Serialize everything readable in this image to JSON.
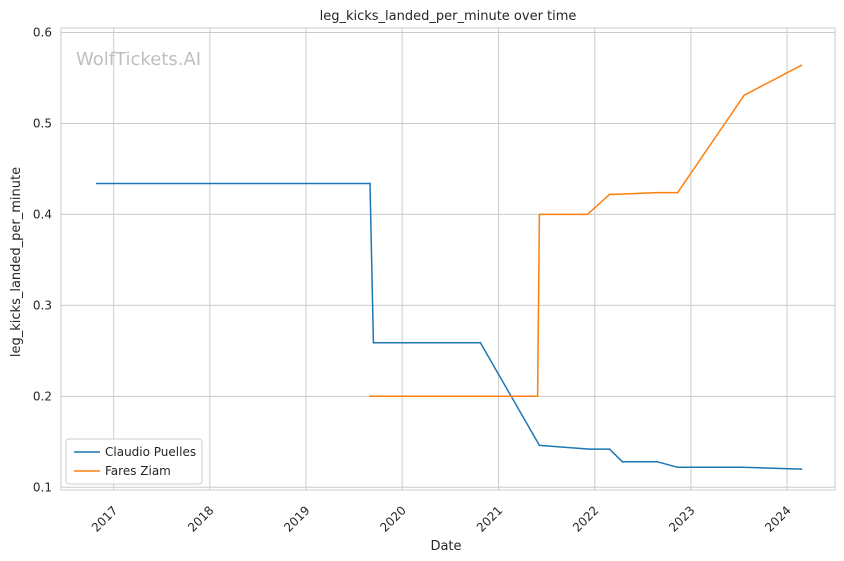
{
  "chart_data": {
    "type": "line",
    "title": "leg_kicks_landed_per_minute over time",
    "xlabel": "Date",
    "ylabel": "leg_kicks_landed_per_minute",
    "watermark": "WolfTickets.AI",
    "xlim": [
      "2016-06-15",
      "2024-07-01"
    ],
    "ylim": [
      0.097,
      0.605
    ],
    "x_ticks": [
      "2017",
      "2018",
      "2019",
      "2020",
      "2021",
      "2022",
      "2023",
      "2024"
    ],
    "y_ticks": [
      "0.1",
      "0.2",
      "0.3",
      "0.4",
      "0.5",
      "0.6"
    ],
    "grid": true,
    "legend_position": "lower-left",
    "series": [
      {
        "name": "Claudio Puelles",
        "color": "#1f77b4",
        "points": [
          [
            "2016-10-29",
            0.434
          ],
          [
            "2019-09-01",
            0.434
          ],
          [
            "2019-09-14",
            0.259
          ],
          [
            "2020-10-24",
            0.259
          ],
          [
            "2021-06-05",
            0.146
          ],
          [
            "2021-12-11",
            0.142
          ],
          [
            "2022-02-26",
            0.142
          ],
          [
            "2022-04-16",
            0.128
          ],
          [
            "2022-08-27",
            0.128
          ],
          [
            "2022-11-12",
            0.122
          ],
          [
            "2023-07-15",
            0.122
          ],
          [
            "2024-02-24",
            0.12
          ]
        ]
      },
      {
        "name": "Fares Ziam",
        "color": "#ff7f0e",
        "points": [
          [
            "2019-09-01",
            0.2
          ],
          [
            "2021-05-29",
            0.2
          ],
          [
            "2021-06-05",
            0.4
          ],
          [
            "2021-12-04",
            0.4
          ],
          [
            "2022-02-26",
            0.422
          ],
          [
            "2022-03-12",
            0.422
          ],
          [
            "2022-08-27",
            0.424
          ],
          [
            "2022-11-12",
            0.424
          ],
          [
            "2023-07-22",
            0.531
          ],
          [
            "2024-02-24",
            0.564
          ]
        ]
      }
    ]
  }
}
